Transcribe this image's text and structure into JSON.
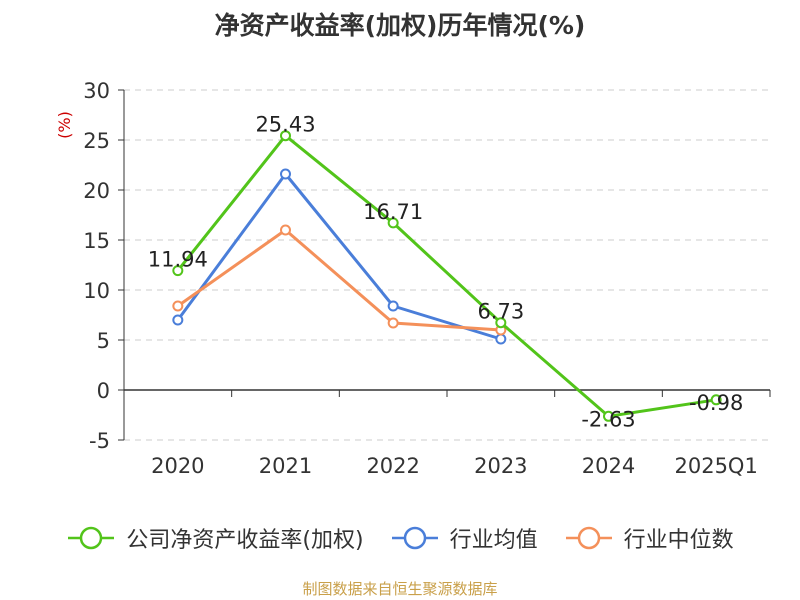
{
  "chart_data": {
    "type": "line",
    "title": "净资产收益率(加权)历年情况(%)",
    "ylabel": "(%)",
    "categories": [
      "2020",
      "2021",
      "2022",
      "2023",
      "2024",
      "2025Q1"
    ],
    "ylim": [
      -5,
      30
    ],
    "yticks": [
      30,
      25,
      20,
      15,
      10,
      5,
      0,
      -5
    ],
    "grid": true,
    "legend_position": "bottom",
    "series": [
      {
        "name": "公司净资产收益率(加权)",
        "color": "#52c41a",
        "values": [
          11.94,
          25.43,
          16.71,
          6.73,
          -2.63,
          -0.98
        ],
        "labels": [
          "11.94",
          "25.43",
          "16.71",
          "6.73",
          "-2.63",
          "-0.98"
        ]
      },
      {
        "name": "行业均值",
        "color": "#4a7ed9",
        "values": [
          7.0,
          21.6,
          8.4,
          5.1,
          null,
          null
        ]
      },
      {
        "name": "行业中位数",
        "color": "#f4905a",
        "values": [
          8.4,
          16.0,
          6.7,
          6.0,
          null,
          null
        ]
      }
    ]
  },
  "source": {
    "text": "制图数据来自恒生聚源数据库",
    "color": "#c9a04a"
  }
}
